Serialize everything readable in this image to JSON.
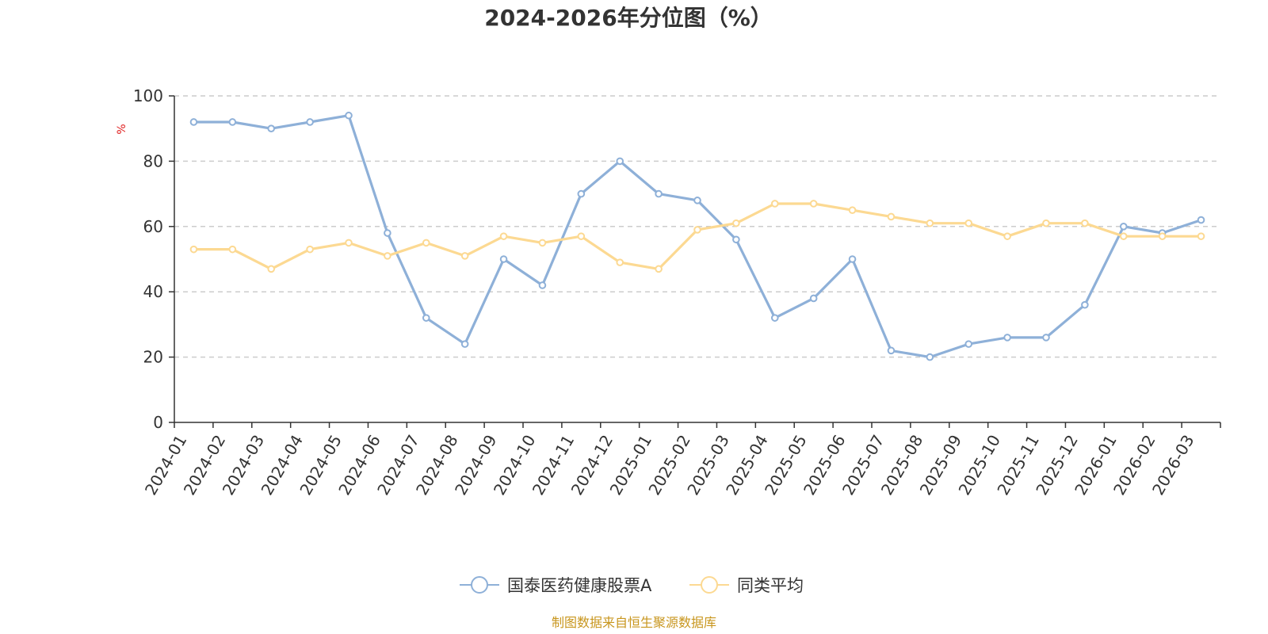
{
  "chart_data": {
    "type": "line",
    "title": "2024-2026年分位图（%）",
    "ylabel": "%",
    "ylim": [
      0,
      100
    ],
    "yticks": [
      "0",
      "20",
      "40",
      "60",
      "80",
      "100"
    ],
    "grid": true,
    "legend_position": "bottom",
    "categories": [
      "2024-01",
      "2024-02",
      "2024-03",
      "2024-04",
      "2024-05",
      "2024-06",
      "2024-07",
      "2024-08",
      "2024-09",
      "2024-10",
      "2024-11",
      "2024-12",
      "2025-01",
      "2025-02",
      "2025-03",
      "2025-04",
      "2025-05",
      "2025-06",
      "2025-07",
      "2025-08",
      "2025-09",
      "2025-10",
      "2025-11",
      "2025-12",
      "2026-01",
      "2026-02",
      "2026-03"
    ],
    "series": [
      {
        "name": "国泰医药健康股票A",
        "color": "#8eb0d8",
        "values": [
          92,
          92,
          90,
          92,
          94,
          58,
          32,
          24,
          50,
          42,
          70,
          80,
          70,
          68,
          56,
          32,
          38,
          50,
          22,
          20,
          24,
          26,
          26,
          36,
          60,
          58,
          62
        ]
      },
      {
        "name": "同类平均",
        "color": "#fcd992",
        "values": [
          53,
          53,
          47,
          53,
          55,
          51,
          55,
          51,
          57,
          55,
          57,
          49,
          47,
          59,
          61,
          67,
          67,
          65,
          63,
          61,
          61,
          57,
          61,
          61,
          57,
          57,
          57
        ]
      }
    ],
    "source": "制图数据来自恒生聚源数据库"
  }
}
